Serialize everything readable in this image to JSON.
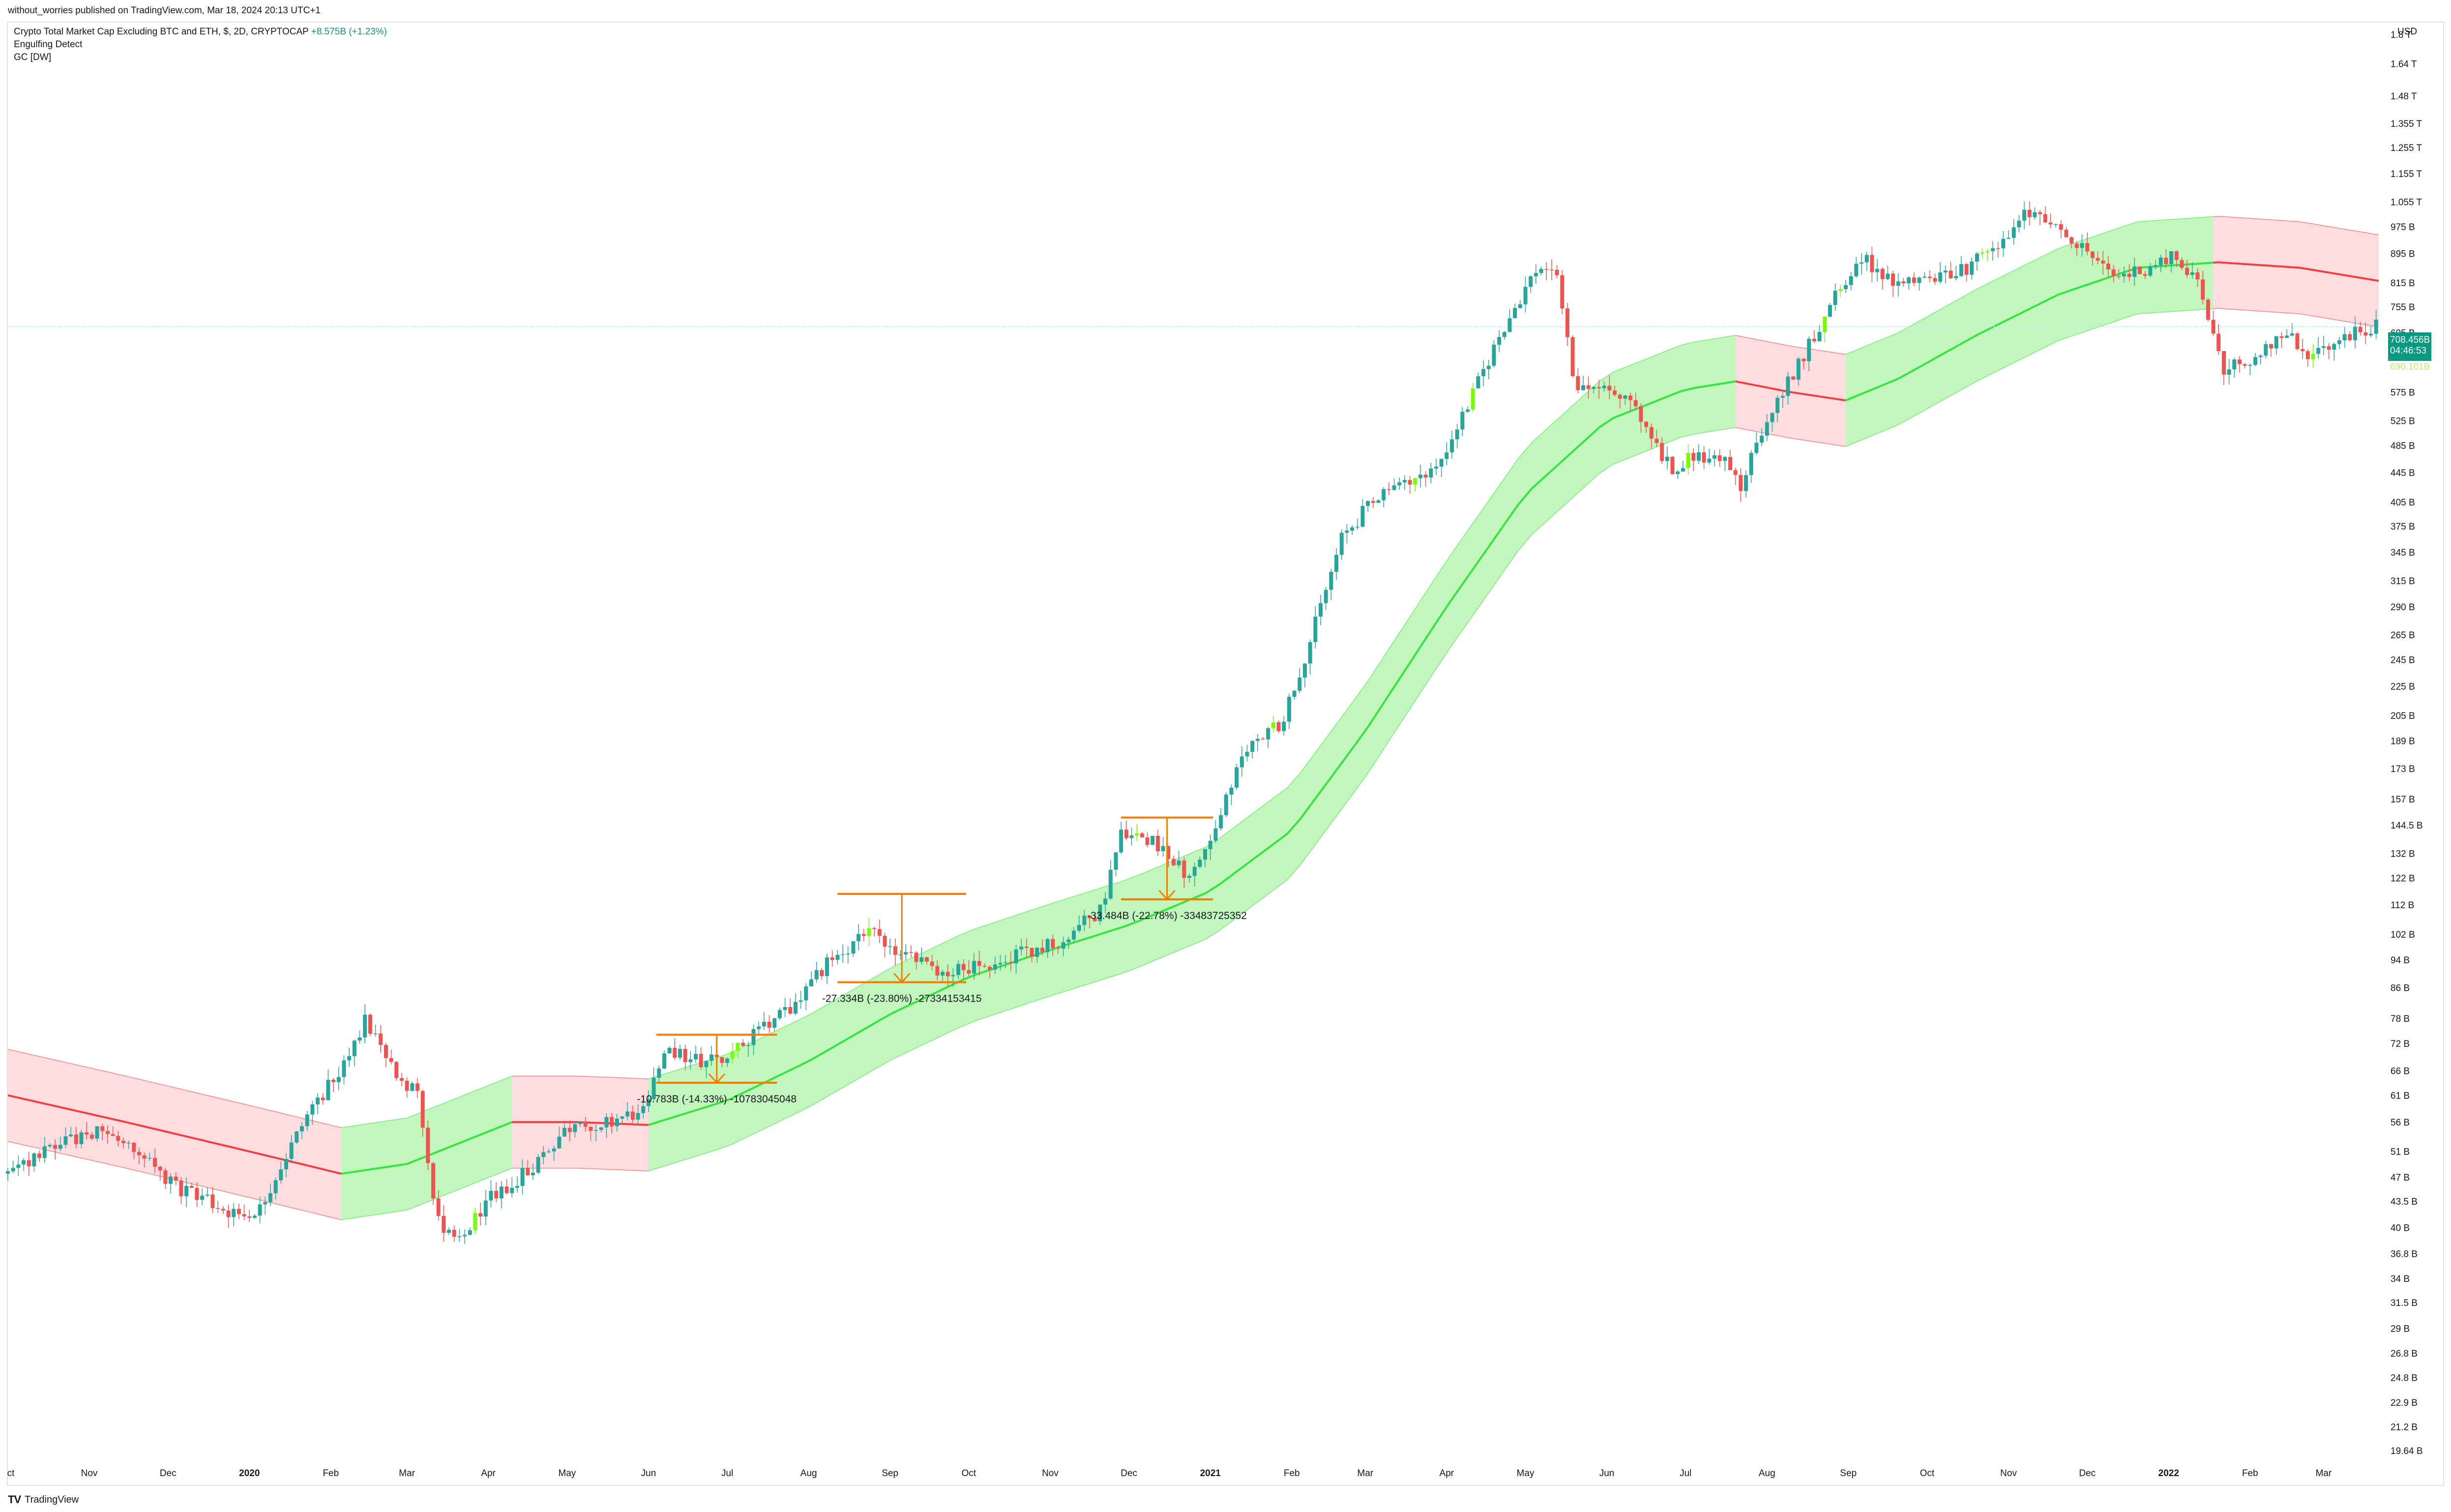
{
  "header": {
    "published_text": "without_worries published on TradingView.com, Mar 18, 2024 20:13 UTC+1"
  },
  "legend": {
    "symbol": "Crypto Total Market Cap Excluding BTC and ETH, $, 2D, CRYPTOCAP",
    "change": "+8.575B (+1.23%)",
    "indicator_1": "Engulfing Detect",
    "indicator_2": "GC [DW]"
  },
  "price_axis": {
    "currency": "USD",
    "current_price": "708.456B",
    "countdown": "04:46:53",
    "prev_close": "690.101B",
    "tick_labels": [
      "1.8 T",
      "1.64 T",
      "1.48 T",
      "1.355 T",
      "1.255 T",
      "1.155 T",
      "1.055 T",
      "975 B",
      "895 B",
      "815 B",
      "755 B",
      "695 B",
      "635 B",
      "575 B",
      "525 B",
      "485 B",
      "445 B",
      "405 B",
      "375 B",
      "345 B",
      "315 B",
      "290 B",
      "265 B",
      "245 B",
      "225 B",
      "205 B",
      "189 B",
      "173 B",
      "157 B",
      "144.5 B",
      "132 B",
      "122 B",
      "112 B",
      "102 B",
      "94 B",
      "86 B",
      "78 B",
      "72 B",
      "66 B",
      "61 B",
      "56 B",
      "51 B",
      "47 B",
      "43.5 B",
      "40 B",
      "36.8 B",
      "34 B",
      "31.5 B",
      "29 B",
      "26.8 B",
      "24.8 B",
      "22.9 B",
      "21.2 B",
      "19.64 B"
    ]
  },
  "colors": {
    "up": "#26a69a",
    "down": "#ef5350",
    "engulf_up": "#76ff03",
    "band_bull": "#b8f5b0",
    "band_bear": "#ffd6d9",
    "mid_bull": "#35e43f",
    "mid_bear": "#ef4040",
    "measure": "#f57c00",
    "price_tag": "#089981"
  },
  "footer": {
    "brand": "TradingView"
  },
  "chart_data": {
    "type": "candlestick",
    "scale": "log",
    "y_unit": "B",
    "ylim": [
      19.64,
      1800
    ],
    "x_labels": [
      "ct",
      "Nov",
      "Dec",
      "2020",
      "Feb",
      "Mar",
      "Apr",
      "May",
      "Jun",
      "Jul",
      "Aug",
      "Sep",
      "Oct",
      "Nov",
      "Dec",
      "2021",
      "Feb",
      "Mar",
      "Apr",
      "May",
      "Jun",
      "Jul",
      "Aug",
      "Sep",
      "Oct",
      "Nov",
      "Dec",
      "2022",
      "Feb",
      "Mar"
    ],
    "price_path": [
      [
        "2019-10-01",
        47.5
      ],
      [
        "2019-10-20",
        52
      ],
      [
        "2019-11-05",
        55
      ],
      [
        "2019-11-20",
        50
      ],
      [
        "2019-12-05",
        45.5
      ],
      [
        "2019-12-25",
        42
      ],
      [
        "2020-01-05",
        42.5
      ],
      [
        "2020-01-12",
        48
      ],
      [
        "2020-01-25",
        59
      ],
      [
        "2020-02-05",
        66
      ],
      [
        "2020-02-14",
        78
      ],
      [
        "2020-02-22",
        68
      ],
      [
        "2020-03-05",
        61
      ],
      [
        "2020-03-12",
        42
      ],
      [
        "2020-03-20",
        37.5
      ],
      [
        "2020-04-01",
        44
      ],
      [
        "2020-04-15",
        47.5
      ],
      [
        "2020-05-01",
        55
      ],
      [
        "2020-05-15",
        56
      ],
      [
        "2020-05-30",
        58
      ],
      [
        "2020-06-08",
        70
      ],
      [
        "2020-06-20",
        68
      ],
      [
        "2020-07-01",
        69
      ],
      [
        "2020-07-15",
        76
      ],
      [
        "2020-07-28",
        82
      ],
      [
        "2020-08-10",
        95
      ],
      [
        "2020-08-25",
        102
      ],
      [
        "2020-09-05",
        95
      ],
      [
        "2020-09-20",
        91
      ],
      [
        "2020-10-05",
        92
      ],
      [
        "2020-10-20",
        96
      ],
      [
        "2020-11-05",
        100
      ],
      [
        "2020-11-20",
        110
      ],
      [
        "2020-11-28",
        140
      ],
      [
        "2020-12-10",
        138
      ],
      [
        "2020-12-25",
        122
      ],
      [
        "2021-01-05",
        150
      ],
      [
        "2021-01-15",
        185
      ],
      [
        "2021-01-28",
        200
      ],
      [
        "2021-02-08",
        260
      ],
      [
        "2021-02-20",
        360
      ],
      [
        "2021-03-01",
        395
      ],
      [
        "2021-03-15",
        430
      ],
      [
        "2021-03-28",
        450
      ],
      [
        "2021-04-10",
        560
      ],
      [
        "2021-04-22",
        700
      ],
      [
        "2021-05-05",
        850
      ],
      [
        "2021-05-12",
        860
      ],
      [
        "2021-05-20",
        580
      ],
      [
        "2021-06-01",
        585
      ],
      [
        "2021-06-15",
        530
      ],
      [
        "2021-06-25",
        450
      ],
      [
        "2021-07-05",
        470
      ],
      [
        "2021-07-15",
        470
      ],
      [
        "2021-07-22",
        430
      ],
      [
        "2021-08-05",
        560
      ],
      [
        "2021-08-15",
        650
      ],
      [
        "2021-08-25",
        760
      ],
      [
        "2021-09-06",
        890
      ],
      [
        "2021-09-20",
        800
      ],
      [
        "2021-10-01",
        830
      ],
      [
        "2021-10-15",
        850
      ],
      [
        "2021-10-30",
        920
      ],
      [
        "2021-11-08",
        1020
      ],
      [
        "2021-11-20",
        960
      ],
      [
        "2021-12-01",
        900
      ],
      [
        "2021-12-10",
        830
      ],
      [
        "2021-12-25",
        850
      ],
      [
        "2022-01-02",
        880
      ],
      [
        "2022-01-12",
        830
      ],
      [
        "2022-01-22",
        620
      ],
      [
        "2022-02-05",
        650
      ],
      [
        "2022-02-15",
        690
      ],
      [
        "2022-02-25",
        645
      ],
      [
        "2022-03-10",
        690
      ],
      [
        "2022-03-18",
        708
      ]
    ],
    "band": {
      "mid": [
        [
          "2019-10-01",
          61
        ],
        [
          "2019-11-15",
          56
        ],
        [
          "2020-01-01",
          51
        ],
        [
          "2020-02-05",
          47.5
        ],
        [
          "2020-03-01",
          49
        ],
        [
          "2020-04-10",
          56
        ],
        [
          "2020-05-05",
          56
        ],
        [
          "2020-06-01",
          55.5
        ],
        [
          "2020-07-01",
          60
        ],
        [
          "2020-08-01",
          68
        ],
        [
          "2020-09-01",
          79
        ],
        [
          "2020-10-01",
          89
        ],
        [
          "2020-11-01",
          97
        ],
        [
          "2020-12-01",
          105
        ],
        [
          "2021-01-01",
          117
        ],
        [
          "2021-02-01",
          142
        ],
        [
          "2021-03-01",
          195
        ],
        [
          "2021-04-01",
          290
        ],
        [
          "2021-05-01",
          415
        ],
        [
          "2021-06-01",
          525
        ],
        [
          "2021-07-01",
          580
        ],
        [
          "2021-07-20",
          595
        ],
        [
          "2021-08-10",
          575
        ],
        [
          "2021-08-31",
          560
        ],
        [
          "2021-09-20",
          600
        ],
        [
          "2021-10-20",
          690
        ],
        [
          "2021-11-20",
          785
        ],
        [
          "2021-12-20",
          855
        ],
        [
          "2022-01-20",
          870
        ],
        [
          "2022-02-20",
          855
        ],
        [
          "2022-03-22",
          820
        ]
      ],
      "half_width_log": 0.147,
      "phases": [
        {
          "start": "2019-10-01",
          "end": "2020-02-05",
          "trend": "bear"
        },
        {
          "start": "2020-02-05",
          "end": "2020-04-10",
          "trend": "bull"
        },
        {
          "start": "2020-04-10",
          "end": "2020-06-01",
          "trend": "bear"
        },
        {
          "start": "2020-06-01",
          "end": "2021-07-20",
          "trend": "bull"
        },
        {
          "start": "2021-07-20",
          "end": "2021-08-31",
          "trend": "bear"
        },
        {
          "start": "2021-08-31",
          "end": "2022-01-18",
          "trend": "bull"
        },
        {
          "start": "2022-01-18",
          "end": "2022-03-22",
          "trend": "bear"
        }
      ]
    },
    "horizontal_line": 708.456,
    "measurements": [
      {
        "start": "2020-06-04",
        "end": "2020-07-20",
        "high": 74,
        "low": 63.5,
        "label": "-10.783B (-14.33%) -10783045048"
      },
      {
        "start": "2020-08-12",
        "end": "2020-09-30",
        "high": 116,
        "low": 87.5,
        "label": "-27.334B (-23.80%) -27334153415"
      },
      {
        "start": "2020-11-28",
        "end": "2021-01-02",
        "high": 148,
        "low": 114,
        "label": "-33.484B (-22.78%) -33483725352"
      }
    ]
  }
}
